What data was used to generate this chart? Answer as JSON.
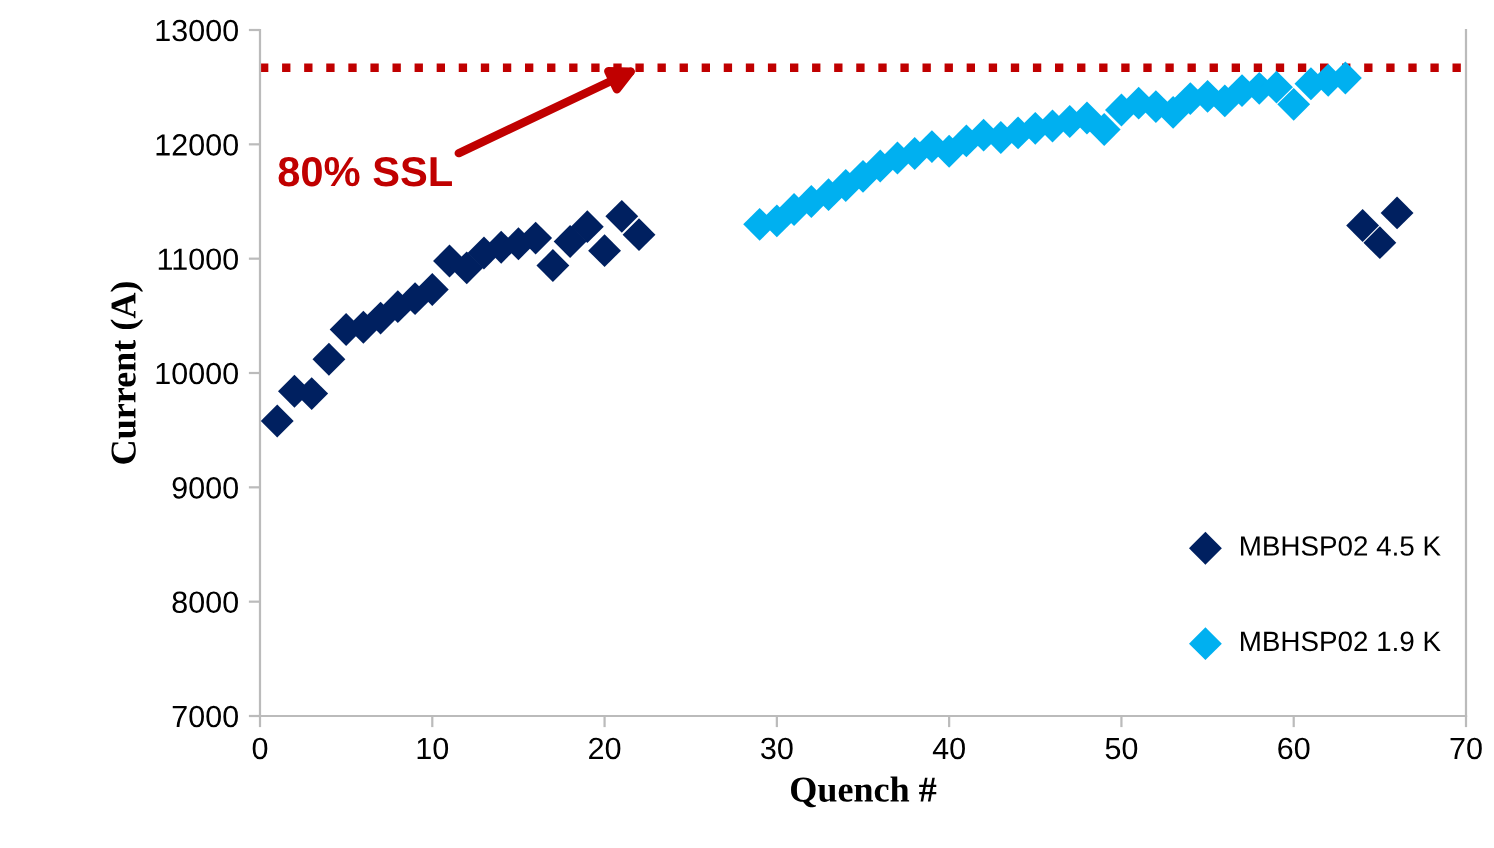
{
  "chart_data": {
    "type": "scatter",
    "xlabel": "Quench #",
    "ylabel": "Current (A)",
    "xlim": [
      0,
      70
    ],
    "xticks": [
      0,
      10,
      20,
      30,
      40,
      50,
      60,
      70
    ],
    "ylim": [
      7000,
      13000
    ],
    "yticks": [
      7000,
      8000,
      9000,
      10000,
      11000,
      12000,
      13000
    ],
    "marker": "diamond",
    "grid": false,
    "legend": "bottom right",
    "series": [
      {
        "name": "MBHSP02 4.5 K",
        "color": "#002060",
        "x": [
          1,
          2,
          3,
          4,
          5,
          6,
          7,
          8,
          9,
          10,
          11,
          12,
          13,
          14,
          15,
          16,
          17,
          18,
          19,
          20,
          21,
          22,
          64,
          65,
          66
        ],
        "values": [
          9580,
          9840,
          9820,
          10120,
          10380,
          10400,
          10480,
          10580,
          10650,
          10730,
          10980,
          10920,
          11050,
          11100,
          11130,
          11180,
          10940,
          11150,
          11280,
          11070,
          11370,
          11210,
          11290,
          11140,
          11400
        ]
      },
      {
        "name": "MBHSP02 1.9 K",
        "color": "#00b0f0",
        "x": [
          29,
          30,
          31,
          32,
          33,
          34,
          35,
          36,
          37,
          38,
          39,
          40,
          41,
          42,
          43,
          44,
          45,
          46,
          47,
          48,
          49,
          50,
          51,
          52,
          53,
          54,
          55,
          56,
          57,
          58,
          59,
          60,
          61,
          62,
          63
        ],
        "values": [
          11300,
          11330,
          11430,
          11500,
          11560,
          11640,
          11720,
          11810,
          11880,
          11920,
          11980,
          11940,
          12030,
          12080,
          12060,
          12100,
          12140,
          12160,
          12200,
          12230,
          12130,
          12300,
          12360,
          12330,
          12280,
          12400,
          12420,
          12380,
          12470,
          12490,
          12500,
          12350,
          12530,
          12560,
          12580
        ]
      }
    ],
    "ref_lines": [
      {
        "axis": "y",
        "value": 12670,
        "color": "#c00000",
        "line_style": "dotted"
      }
    ],
    "annotations": [
      {
        "text": "80% SSL",
        "x": 22,
        "y": 12670
      }
    ]
  }
}
